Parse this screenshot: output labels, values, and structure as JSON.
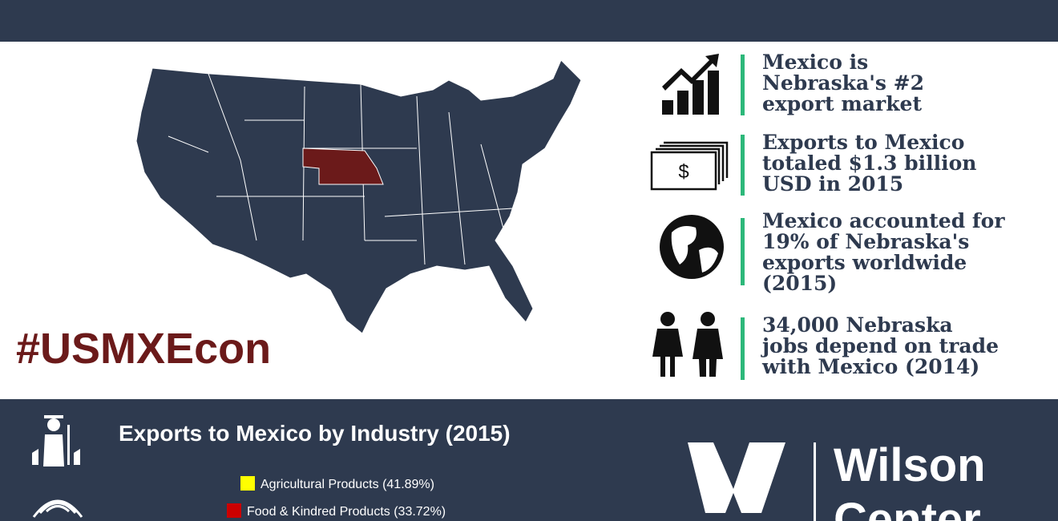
{
  "hashtag": "#USMXEcon",
  "facts": [
    {
      "lines": [
        "Mexico is",
        "Nebraska's #2",
        "export market"
      ]
    },
    {
      "lines": [
        "Exports to Mexico",
        "totaled $1.3 billion",
        "USD in 2015"
      ]
    },
    {
      "lines": [
        "Mexico accounted for",
        "19% of Nebraska's",
        "exports worldwide",
        "(2015)"
      ]
    },
    {
      "lines": [
        "34,000 Nebraska",
        "jobs depend on trade",
        "with Mexico (2014)"
      ]
    }
  ],
  "industry": {
    "title": "Exports to Mexico by Industry (2015)",
    "legend": [
      {
        "label": "Agricultural Products (41.89%)",
        "color": "#ffff00"
      },
      {
        "label": "Food & Kindred Products (33.72%)",
        "color": "#cc0000"
      }
    ]
  },
  "logo": {
    "lines": [
      "Wilson",
      "Center"
    ]
  }
}
